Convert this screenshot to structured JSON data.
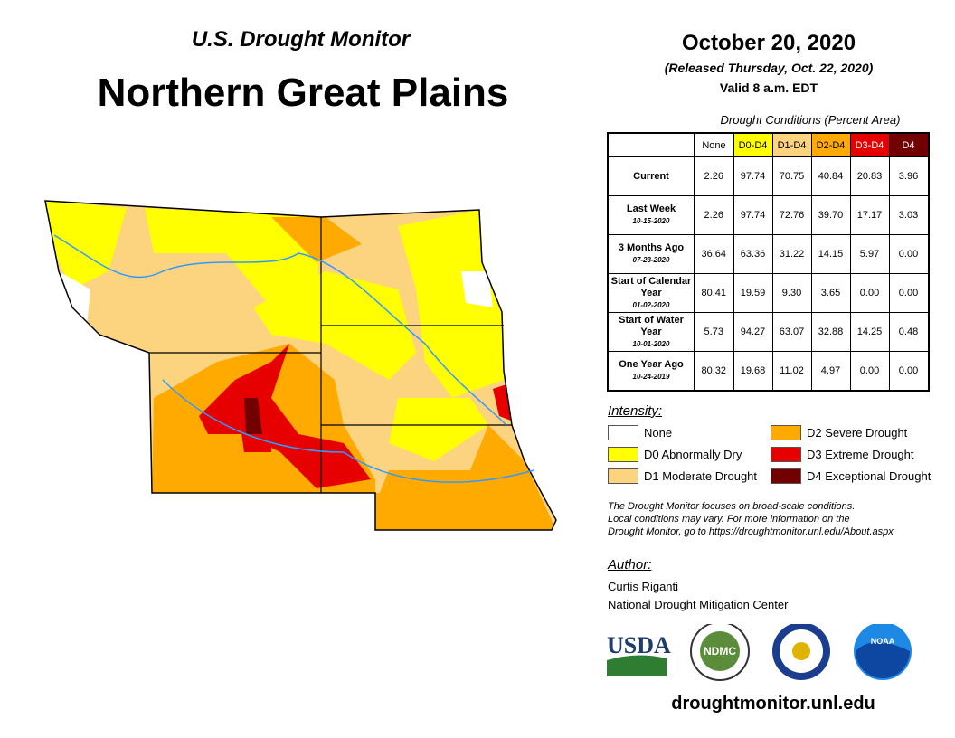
{
  "header": {
    "subtitle": "U.S. Drought Monitor",
    "title": "Northern Great Plains",
    "date": "October 20, 2020",
    "released": "(Released Thursday, Oct. 22, 2020)",
    "valid": "Valid 8 a.m. EDT"
  },
  "table": {
    "caption": "Drought Conditions (Percent Area)",
    "columns": [
      {
        "label": "None",
        "color": "#ffffff"
      },
      {
        "label": "D0-D4",
        "color": "#ffff00"
      },
      {
        "label": "D1-D4",
        "color": "#fcd37f"
      },
      {
        "label": "D2-D4",
        "color": "#ffaa00"
      },
      {
        "label": "D3-D4",
        "color": "#e60000",
        "text": "#ffffff"
      },
      {
        "label": "D4",
        "color": "#730000",
        "text": "#ffffff"
      }
    ],
    "rows": [
      {
        "label": "Current",
        "date": "",
        "values": [
          "2.26",
          "97.74",
          "70.75",
          "40.84",
          "20.83",
          "3.96"
        ]
      },
      {
        "label": "Last Week",
        "date": "10-15-2020",
        "values": [
          "2.26",
          "97.74",
          "72.76",
          "39.70",
          "17.17",
          "3.03"
        ]
      },
      {
        "label": "3 Months Ago",
        "date": "07-23-2020",
        "values": [
          "36.64",
          "63.36",
          "31.22",
          "14.15",
          "5.97",
          "0.00"
        ]
      },
      {
        "label": "Start of Calendar Year",
        "date": "01-02-2020",
        "values": [
          "80.41",
          "19.59",
          "9.30",
          "3.65",
          "0.00",
          "0.00"
        ]
      },
      {
        "label": "Start of Water Year",
        "date": "10-01-2020",
        "values": [
          "5.73",
          "94.27",
          "63.07",
          "32.88",
          "14.25",
          "0.48"
        ]
      },
      {
        "label": "One Year Ago",
        "date": "10-24-2019",
        "values": [
          "80.32",
          "19.68",
          "11.02",
          "4.97",
          "0.00",
          "0.00"
        ]
      }
    ]
  },
  "legend": {
    "title": "Intensity:",
    "items": [
      {
        "label": "None",
        "color": "#ffffff"
      },
      {
        "label": "D0 Abnormally Dry",
        "color": "#ffff00"
      },
      {
        "label": "D1 Moderate Drought",
        "color": "#fcd37f"
      },
      {
        "label": "D2 Severe Drought",
        "color": "#ffaa00"
      },
      {
        "label": "D3 Extreme Drought",
        "color": "#e60000"
      },
      {
        "label": "D4 Exceptional Drought",
        "color": "#730000"
      }
    ]
  },
  "note": [
    "The Drought Monitor focuses on broad-scale conditions.",
    "Local conditions may vary. For more information on the",
    "Drought Monitor, go to https://droughtmonitor.unl.edu/About.aspx"
  ],
  "author": {
    "heading": "Author:",
    "name": "Curtis Riganti",
    "org": "National Drought Mitigation Center"
  },
  "logos": {
    "usda": "USDA",
    "ndmc": "NDMC",
    "noaa": "NOAA"
  },
  "url": "droughtmonitor.unl.edu"
}
